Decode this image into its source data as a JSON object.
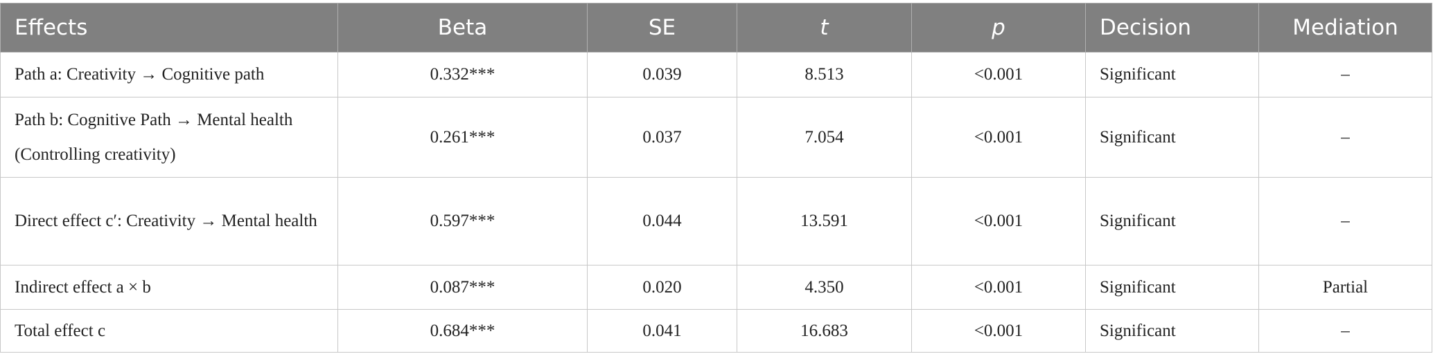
{
  "table": {
    "header": [
      "Effects",
      "Beta",
      "SE",
      "t",
      "p",
      "Decision",
      "Mediation"
    ],
    "rows": [
      [
        "Path a: Creativity → Cognitive path",
        "0.332***",
        "0.039",
        "8.513",
        "<0.001",
        "Significant",
        "–"
      ],
      [
        "Path b: Cognitive Path → Mental health (Controlling creativity)",
        "0.261***",
        "0.037",
        "7.054",
        "<0.001",
        "Significant",
        "–"
      ],
      [
        "Direct effect c′: Creativity → Mental health",
        "0.597***",
        "0.044",
        "13.591",
        "<0.001",
        "Significant",
        "–"
      ],
      [
        "Indirect effect a × b",
        "0.087***",
        "0.020",
        "4.350",
        "<0.001",
        "Significant",
        "Partial"
      ],
      [
        "Total effect c",
        "0.684***",
        "0.041",
        "16.683",
        "<0.001",
        "Significant",
        "–"
      ]
    ]
  }
}
